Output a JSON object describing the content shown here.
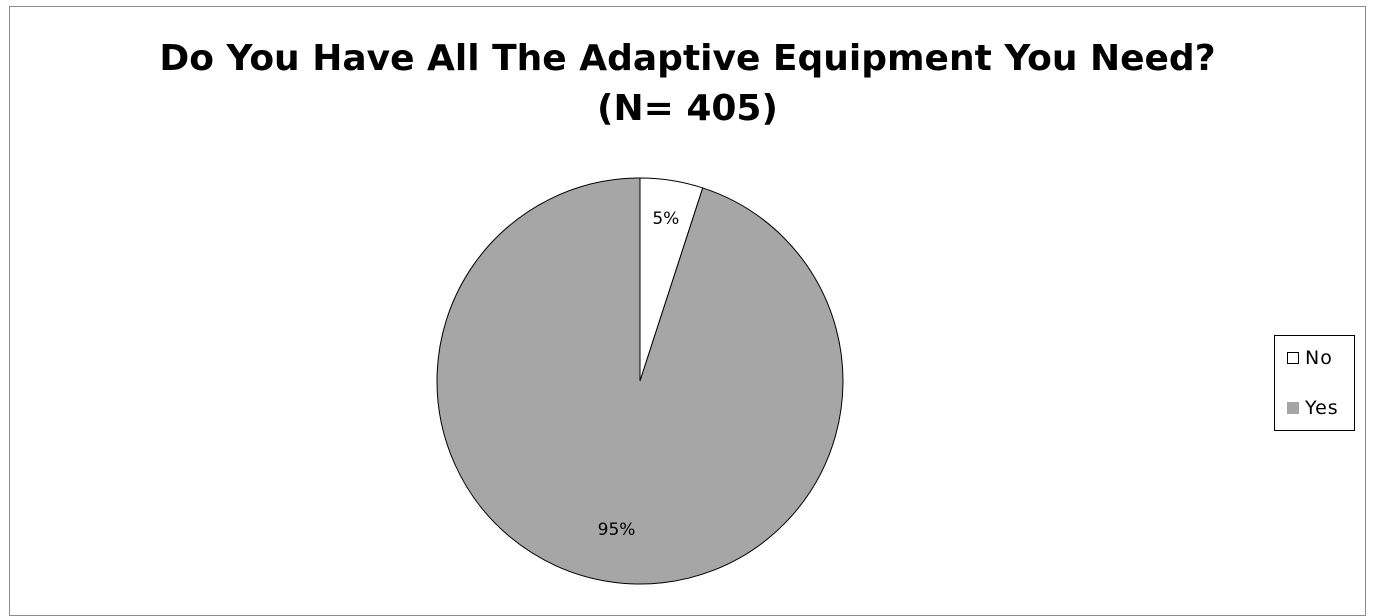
{
  "chart_data": {
    "type": "pie",
    "title": [
      "Do You Have All The Adaptive Equipment You Need?",
      "(N= 405)"
    ],
    "legend_position": "right",
    "slices": [
      {
        "label": "No",
        "value": 5,
        "data_label": "5%",
        "color": "#ffffff"
      },
      {
        "label": "Yes",
        "value": 95,
        "data_label": "95%",
        "color": "#a6a6a6"
      }
    ]
  }
}
